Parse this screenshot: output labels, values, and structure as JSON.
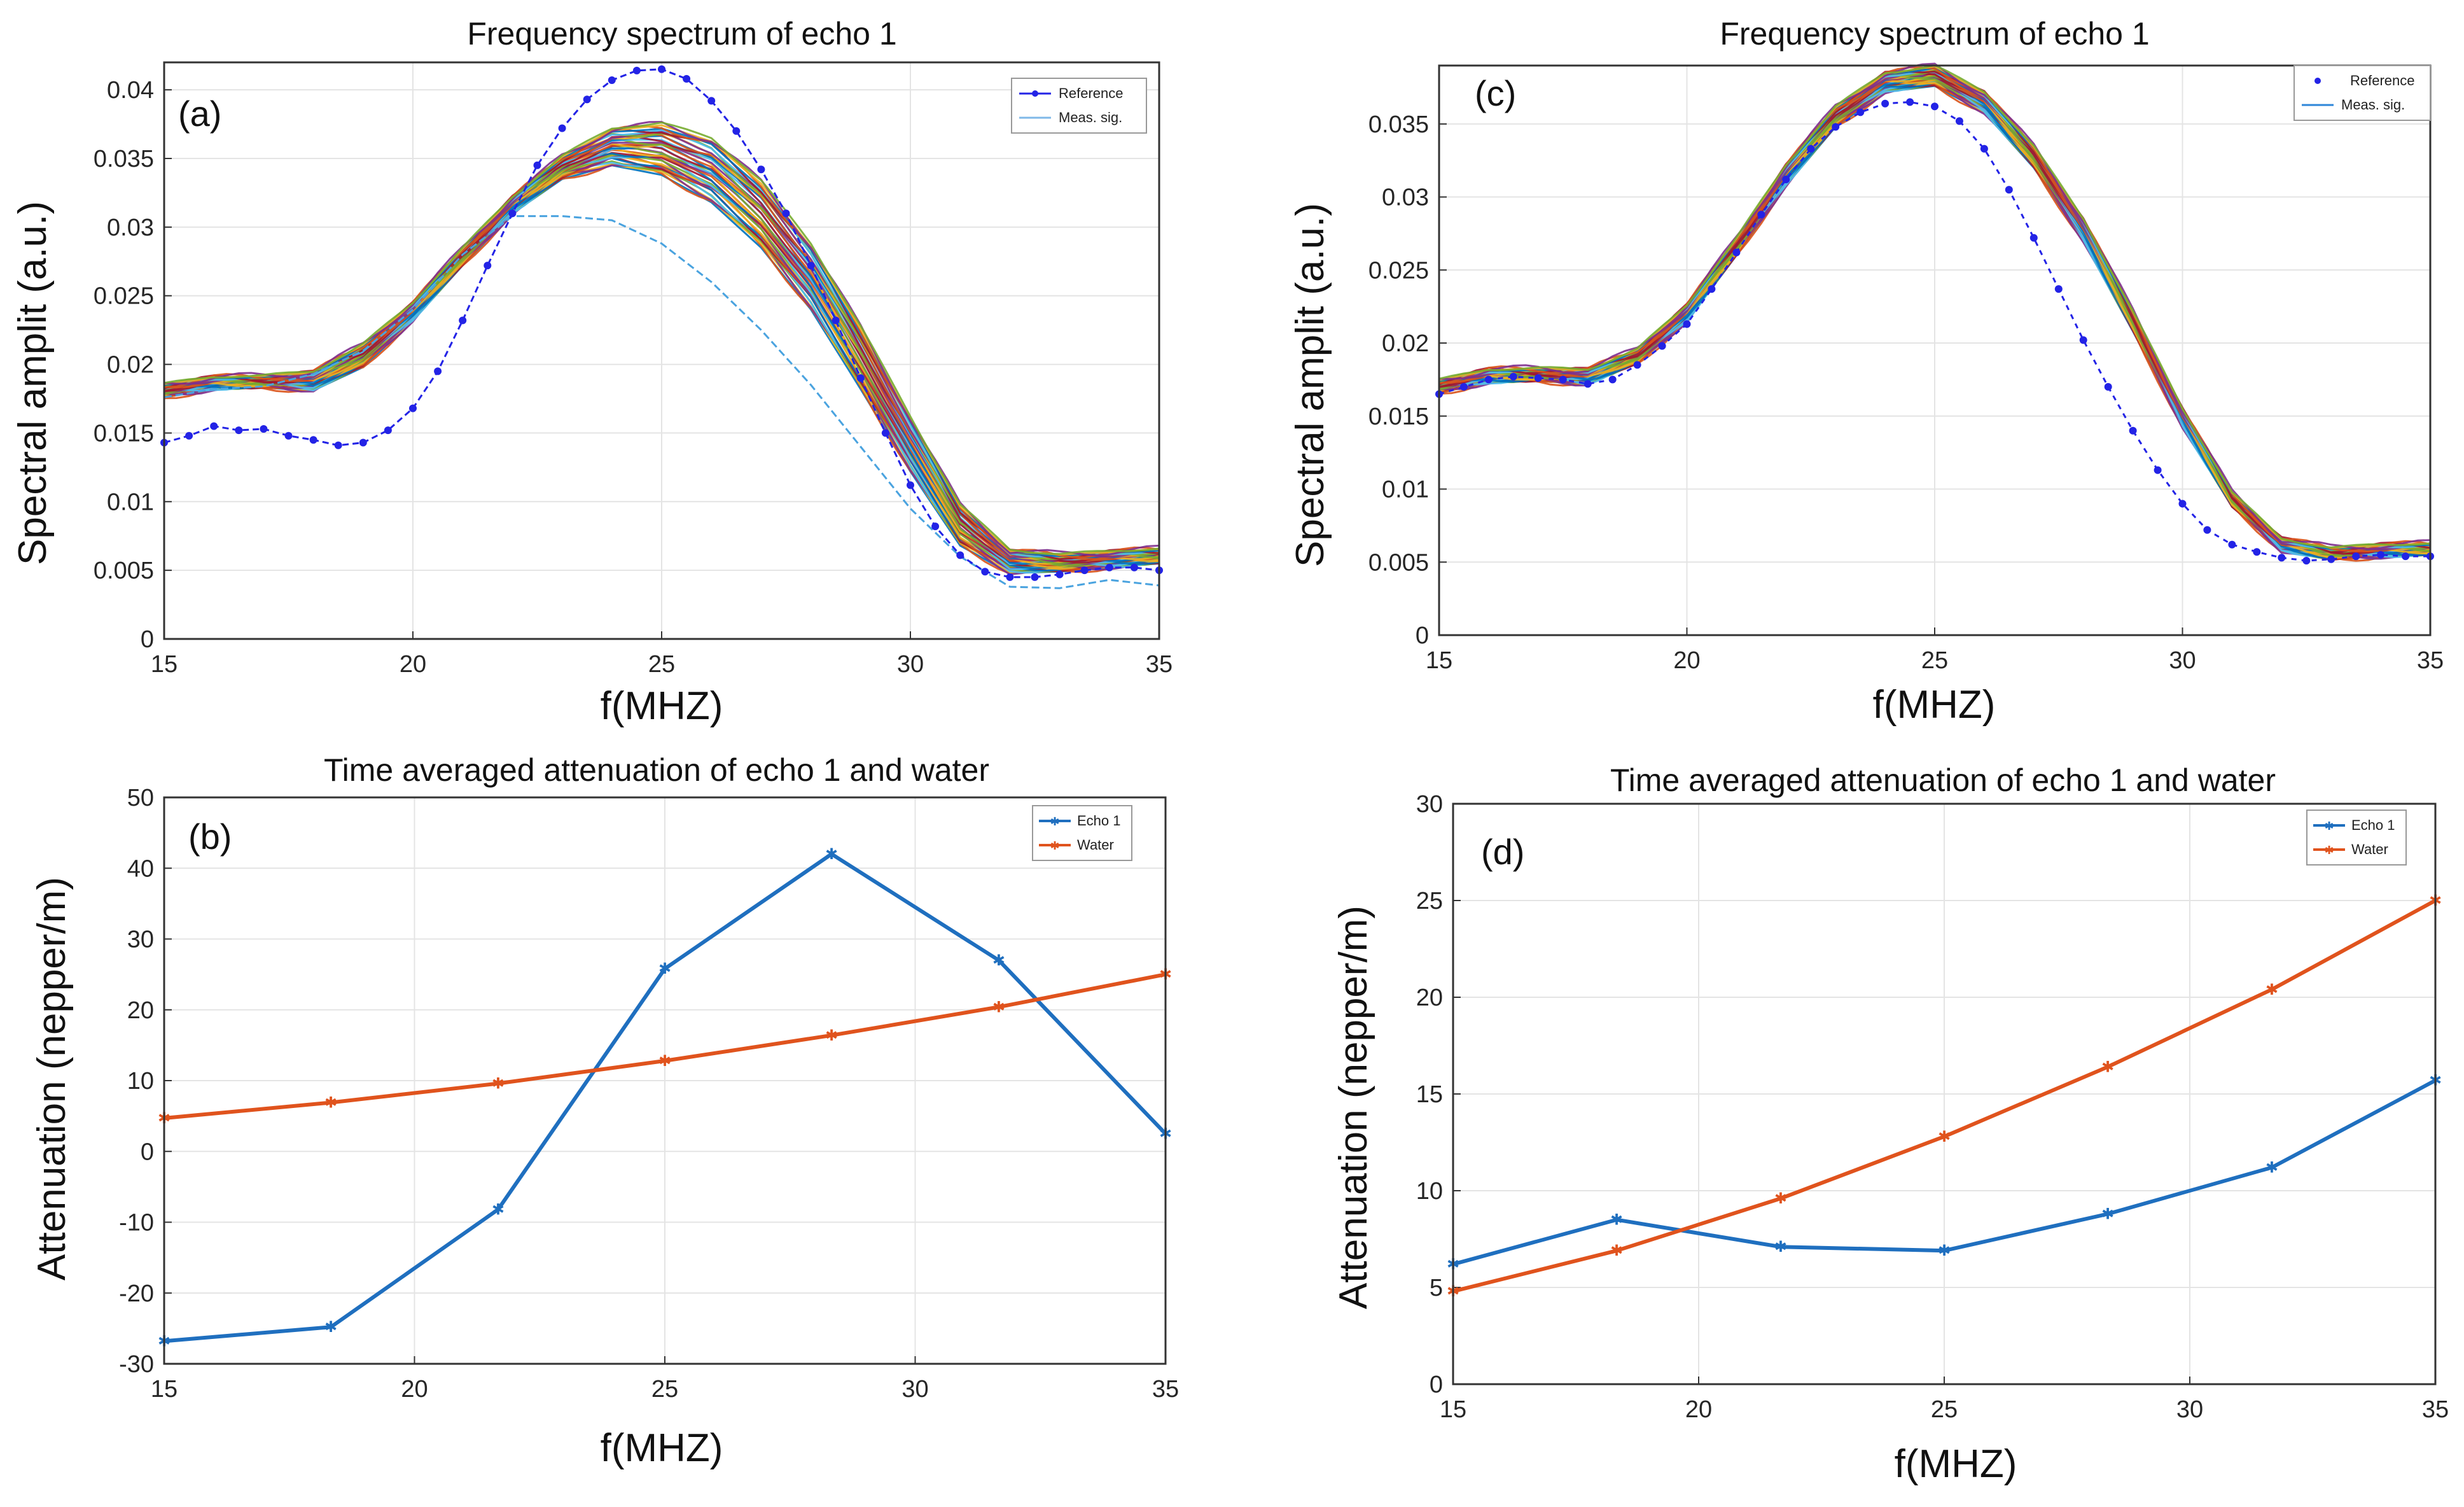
{
  "chart_data": [
    {
      "id": "a",
      "type": "line",
      "panel_tag": "(a)",
      "title": "Frequency spectrum of echo 1",
      "xlabel": "f(MHZ)",
      "ylabel": "Spectral amplit (a.u.)",
      "xlim": [
        15,
        35
      ],
      "ylim": [
        0,
        0.042
      ],
      "xticks": [
        15,
        20,
        25,
        30,
        35
      ],
      "yticks": [
        0,
        0.005,
        0.01,
        0.015,
        0.02,
        0.025,
        0.03,
        0.035,
        0.04
      ],
      "ytick_labels": [
        "0",
        "0.005",
        "0.01",
        "0.015",
        "0.02",
        "0.025",
        "0.03",
        "0.035",
        "0.04"
      ],
      "grid": true,
      "legend_position": "top-right",
      "legend": [
        "Reference",
        "Meas. sig."
      ],
      "reference": {
        "name": "Reference",
        "color": "#2323e6",
        "x": [
          15,
          15.5,
          16,
          16.5,
          17,
          17.5,
          18,
          18.5,
          19,
          19.5,
          20,
          20.5,
          21,
          21.5,
          22,
          22.5,
          23,
          23.5,
          24,
          24.5,
          25,
          25.5,
          26,
          26.5,
          27,
          27.5,
          28,
          28.5,
          29,
          29.5,
          30,
          30.5,
          31,
          31.5,
          32,
          32.5,
          33,
          33.5,
          34,
          34.5,
          35
        ],
        "y": [
          0.0143,
          0.0148,
          0.0155,
          0.0152,
          0.0153,
          0.0148,
          0.0145,
          0.0141,
          0.0143,
          0.0152,
          0.0168,
          0.0195,
          0.0232,
          0.0272,
          0.031,
          0.0345,
          0.0372,
          0.0393,
          0.0407,
          0.0414,
          0.0415,
          0.0408,
          0.0392,
          0.037,
          0.0342,
          0.031,
          0.0272,
          0.0232,
          0.019,
          0.015,
          0.0112,
          0.0082,
          0.0061,
          0.0049,
          0.0045,
          0.0045,
          0.0047,
          0.005,
          0.0052,
          0.0052,
          0.005
        ]
      },
      "measured": {
        "name": "Meas. sig.",
        "count": 40,
        "x": [
          15,
          16,
          17,
          18,
          19,
          20,
          21,
          22,
          23,
          24,
          25,
          26,
          27,
          28,
          29,
          30,
          31,
          32,
          33,
          34,
          35
        ],
        "y_upper": [
          0.0186,
          0.0191,
          0.0192,
          0.0195,
          0.0215,
          0.0245,
          0.0285,
          0.0322,
          0.0352,
          0.0372,
          0.0376,
          0.0365,
          0.0334,
          0.0288,
          0.0228,
          0.0162,
          0.0098,
          0.0065,
          0.0062,
          0.0064,
          0.0066
        ],
        "y_lower": [
          0.0176,
          0.0182,
          0.0183,
          0.0181,
          0.0198,
          0.0232,
          0.0272,
          0.031,
          0.0335,
          0.0345,
          0.0338,
          0.0318,
          0.0285,
          0.024,
          0.0182,
          0.0122,
          0.0068,
          0.0048,
          0.0049,
          0.0052,
          0.0055
        ],
        "outlier": [
          0.0176,
          0.0182,
          0.0184,
          0.0193,
          0.021,
          0.024,
          0.028,
          0.0308,
          0.0308,
          0.0305,
          0.0288,
          0.026,
          0.0225,
          0.0185,
          0.014,
          0.0095,
          0.006,
          0.0038,
          0.0037,
          0.0043,
          0.0039
        ]
      }
    },
    {
      "id": "b",
      "type": "line",
      "panel_tag": "(b)",
      "title": "Time averaged attenuation of echo 1 and water",
      "xlabel": "f(MHZ)",
      "ylabel": "Attenuation (nepper/m)",
      "xlim": [
        15,
        35
      ],
      "ylim": [
        -30,
        50
      ],
      "xticks": [
        15,
        20,
        25,
        30,
        35
      ],
      "yticks": [
        -30,
        -20,
        -10,
        0,
        10,
        20,
        30,
        40,
        50
      ],
      "ytick_labels": [
        "-30",
        "-20",
        "-10",
        "0",
        "10",
        "20",
        "30",
        "40",
        "50"
      ],
      "grid": true,
      "legend_position": "top-right",
      "legend": [
        "Echo 1",
        "Water"
      ],
      "series": [
        {
          "name": "Echo 1",
          "color": "#1f6fbf",
          "x": [
            15,
            18.33,
            21.67,
            25,
            28.33,
            31.67,
            35
          ],
          "y": [
            -26.8,
            -24.8,
            -8.2,
            25.8,
            42,
            27,
            2.5
          ]
        },
        {
          "name": "Water",
          "color": "#e0531d",
          "x": [
            15,
            18.33,
            21.67,
            25,
            28.33,
            31.67,
            35
          ],
          "y": [
            4.7,
            6.9,
            9.6,
            12.8,
            16.4,
            20.4,
            25
          ]
        }
      ]
    },
    {
      "id": "c",
      "type": "line",
      "panel_tag": "(c)",
      "title": "Frequency spectrum of echo 1",
      "xlabel": "f(MHZ)",
      "ylabel": "Spectral amplit (a.u.)",
      "xlim": [
        15,
        35
      ],
      "ylim": [
        0,
        0.039
      ],
      "xticks": [
        15,
        20,
        25,
        30,
        35
      ],
      "yticks": [
        0,
        0.005,
        0.01,
        0.015,
        0.02,
        0.025,
        0.03,
        0.035
      ],
      "ytick_labels": [
        "0",
        "0.005",
        "0.01",
        "0.015",
        "0.02",
        "0.025",
        "0.03",
        "0.035"
      ],
      "grid": true,
      "legend_position": "top-right",
      "legend": [
        "Reference",
        "Meas. sig."
      ],
      "reference": {
        "name": "Reference",
        "color": "#2323e6",
        "x": [
          15,
          15.5,
          16,
          16.5,
          17,
          17.5,
          18,
          18.5,
          19,
          19.5,
          20,
          20.5,
          21,
          21.5,
          22,
          22.5,
          23,
          23.5,
          24,
          24.5,
          25,
          25.5,
          26,
          26.5,
          27,
          27.5,
          28,
          28.5,
          29,
          29.5,
          30,
          30.5,
          31,
          31.5,
          32,
          32.5,
          33,
          33.5,
          34,
          34.5,
          35
        ],
        "y": [
          0.0165,
          0.017,
          0.0175,
          0.0177,
          0.0176,
          0.0175,
          0.0172,
          0.0175,
          0.0185,
          0.0198,
          0.0213,
          0.0237,
          0.0262,
          0.0288,
          0.0312,
          0.0333,
          0.0348,
          0.0358,
          0.0364,
          0.0365,
          0.0362,
          0.0352,
          0.0333,
          0.0305,
          0.0272,
          0.0237,
          0.0202,
          0.017,
          0.014,
          0.0113,
          0.009,
          0.0072,
          0.0062,
          0.0057,
          0.0053,
          0.0051,
          0.0052,
          0.0054,
          0.0055,
          0.0054,
          0.0054
        ]
      },
      "measured": {
        "name": "Meas. sig.",
        "count": 40,
        "x": [
          15,
          16,
          17,
          18,
          19,
          20,
          21,
          22,
          23,
          24,
          25,
          26,
          27,
          28,
          29,
          30,
          31,
          32,
          33,
          34,
          35
        ],
        "y_upper": [
          0.0175,
          0.0182,
          0.0183,
          0.0182,
          0.0196,
          0.0226,
          0.0272,
          0.0322,
          0.0362,
          0.0385,
          0.039,
          0.0372,
          0.0335,
          0.0285,
          0.0222,
          0.0155,
          0.0098,
          0.0066,
          0.006,
          0.0062,
          0.0063
        ],
        "y_lower": [
          0.0166,
          0.0173,
          0.0174,
          0.0172,
          0.0186,
          0.0215,
          0.026,
          0.0308,
          0.0348,
          0.0372,
          0.0376,
          0.0358,
          0.032,
          0.027,
          0.0208,
          0.0143,
          0.0088,
          0.0058,
          0.0052,
          0.0054,
          0.0055
        ]
      }
    },
    {
      "id": "d",
      "type": "line",
      "panel_tag": "(d)",
      "title": "Time averaged attenuation of echo 1 and water",
      "xlabel": "f(MHZ)",
      "ylabel": "Attenuation (nepper/m)",
      "xlim": [
        15,
        35
      ],
      "ylim": [
        0,
        30
      ],
      "xticks": [
        15,
        20,
        25,
        30,
        35
      ],
      "yticks": [
        0,
        5,
        10,
        15,
        20,
        25,
        30
      ],
      "ytick_labels": [
        "0",
        "5",
        "10",
        "15",
        "20",
        "25",
        "30"
      ],
      "grid": true,
      "legend_position": "top-right",
      "legend": [
        "Echo 1",
        "Water"
      ],
      "series": [
        {
          "name": "Echo 1",
          "color": "#1f6fbf",
          "x": [
            15,
            18.33,
            21.67,
            25,
            28.33,
            31.67,
            35
          ],
          "y": [
            6.2,
            8.5,
            7.1,
            6.9,
            8.8,
            11.2,
            15.7
          ]
        },
        {
          "name": "Water",
          "color": "#e0531d",
          "x": [
            15,
            18.33,
            21.67,
            25,
            28.33,
            31.67,
            35
          ],
          "y": [
            4.8,
            6.9,
            9.6,
            12.8,
            16.4,
            20.4,
            25
          ]
        }
      ]
    }
  ]
}
